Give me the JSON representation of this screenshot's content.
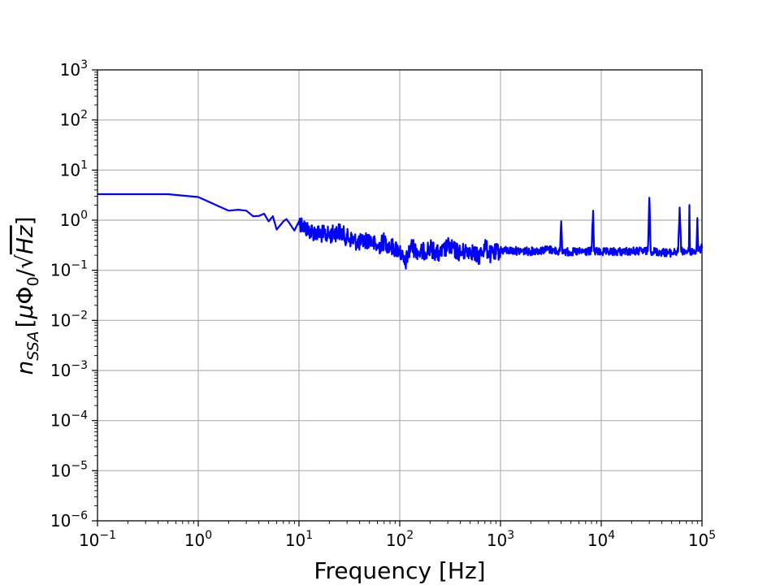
{
  "chart_data": {
    "type": "line",
    "title": "",
    "xlabel": "Frequency [Hz]",
    "ylabel": "n_SSA [μΦ₀/√Hz]",
    "ylabel_parts": {
      "symbol": "n",
      "subscript": "SSA",
      "units_open": "[",
      "mu": "μ",
      "phi": "Φ",
      "phi_sub": "0",
      "slash": "/",
      "sqrt": "√",
      "hz": "Hz",
      "units_close": "]"
    },
    "x_scale": "log",
    "y_scale": "log",
    "xlim": [
      0.1,
      100000
    ],
    "ylim": [
      1e-06,
      1000
    ],
    "x_tick_exponents": [
      -1,
      0,
      1,
      2,
      3,
      4,
      5
    ],
    "y_tick_exponents": [
      -6,
      -5,
      -4,
      -3,
      -2,
      -1,
      0,
      1,
      2,
      3
    ],
    "grid": true,
    "legend": "none",
    "line_color": "#0000ff",
    "series": [
      {
        "x": [
          0.1,
          0.5,
          1.0,
          2.0,
          2.5,
          3.0,
          3.5,
          4.0,
          4.5,
          5.0,
          5.5,
          6.0,
          7.0,
          7.5,
          8.0,
          9.0,
          10.0,
          12,
          15,
          20,
          25,
          30,
          40,
          50,
          60,
          70,
          80,
          100,
          112,
          130,
          160,
          200,
          250,
          300,
          400,
          500,
          600,
          700,
          800,
          1000,
          2000,
          3000,
          3900,
          4000,
          4100,
          5000,
          8000,
          8300,
          8500,
          10000,
          20000,
          29000,
          30000,
          31000,
          50000,
          58000,
          60000,
          62000,
          74000,
          75000,
          76000,
          88000,
          90000,
          92000,
          100000
        ],
        "y": [
          3.3,
          3.3,
          2.9,
          1.55,
          1.62,
          1.55,
          1.2,
          1.22,
          1.35,
          0.95,
          1.2,
          0.65,
          0.95,
          1.05,
          0.88,
          0.62,
          0.95,
          0.65,
          0.55,
          0.5,
          0.6,
          0.45,
          0.35,
          0.42,
          0.28,
          0.38,
          0.3,
          0.25,
          0.13,
          0.3,
          0.22,
          0.28,
          0.2,
          0.3,
          0.22,
          0.26,
          0.18,
          0.3,
          0.2,
          0.25,
          0.24,
          0.26,
          0.24,
          0.95,
          0.24,
          0.23,
          0.24,
          1.55,
          0.24,
          0.23,
          0.24,
          0.24,
          2.8,
          0.24,
          0.22,
          0.24,
          1.8,
          0.24,
          0.24,
          2.0,
          0.24,
          0.24,
          1.1,
          0.24,
          0.28
        ]
      }
    ]
  }
}
